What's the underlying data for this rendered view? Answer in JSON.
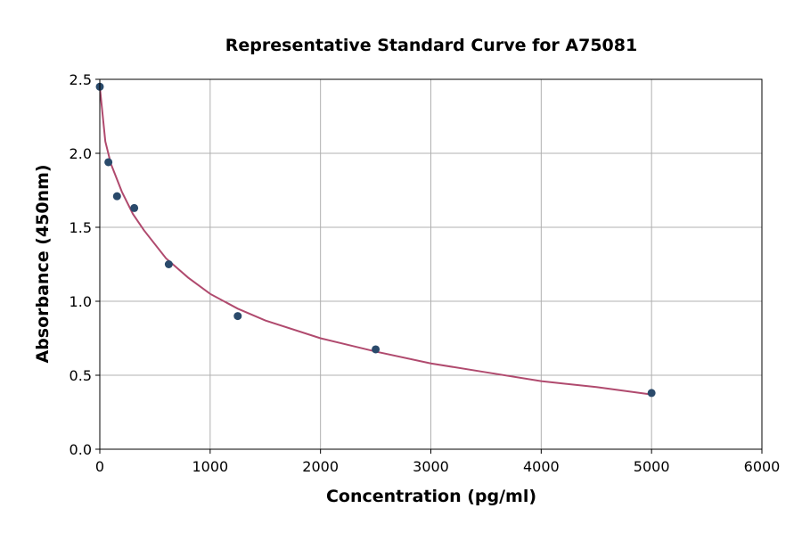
{
  "chart_data": {
    "type": "scatter",
    "title": "Representative Standard Curve for A75081",
    "xlabel": "Concentration (pg/ml)",
    "ylabel": "Absorbance (450nm)",
    "xlim": [
      0,
      6000
    ],
    "ylim": [
      0,
      2.5
    ],
    "xticks": [
      "0",
      "1000",
      "2000",
      "3000",
      "4000",
      "5000",
      "6000"
    ],
    "yticks": [
      "0.0",
      "0.5",
      "1.0",
      "1.5",
      "2.0",
      "2.5"
    ],
    "grid": true,
    "points": {
      "x": [
        0,
        78,
        156,
        312,
        625,
        1250,
        2500,
        5000
      ],
      "y": [
        2.45,
        1.94,
        1.71,
        1.63,
        1.25,
        0.9,
        0.675,
        0.38
      ]
    },
    "fit_curve": {
      "x": [
        0,
        50,
        100,
        200,
        300,
        400,
        600,
        800,
        1000,
        1250,
        1500,
        2000,
        2500,
        3000,
        3500,
        4000,
        4500,
        5000
      ],
      "y": [
        2.45,
        2.08,
        1.93,
        1.74,
        1.59,
        1.48,
        1.29,
        1.16,
        1.05,
        0.95,
        0.87,
        0.75,
        0.66,
        0.58,
        0.52,
        0.46,
        0.42,
        0.37
      ]
    },
    "colors": {
      "points": "#2a4a6b",
      "curve": "#b04a6e",
      "grid": "#b0b0b0"
    }
  }
}
